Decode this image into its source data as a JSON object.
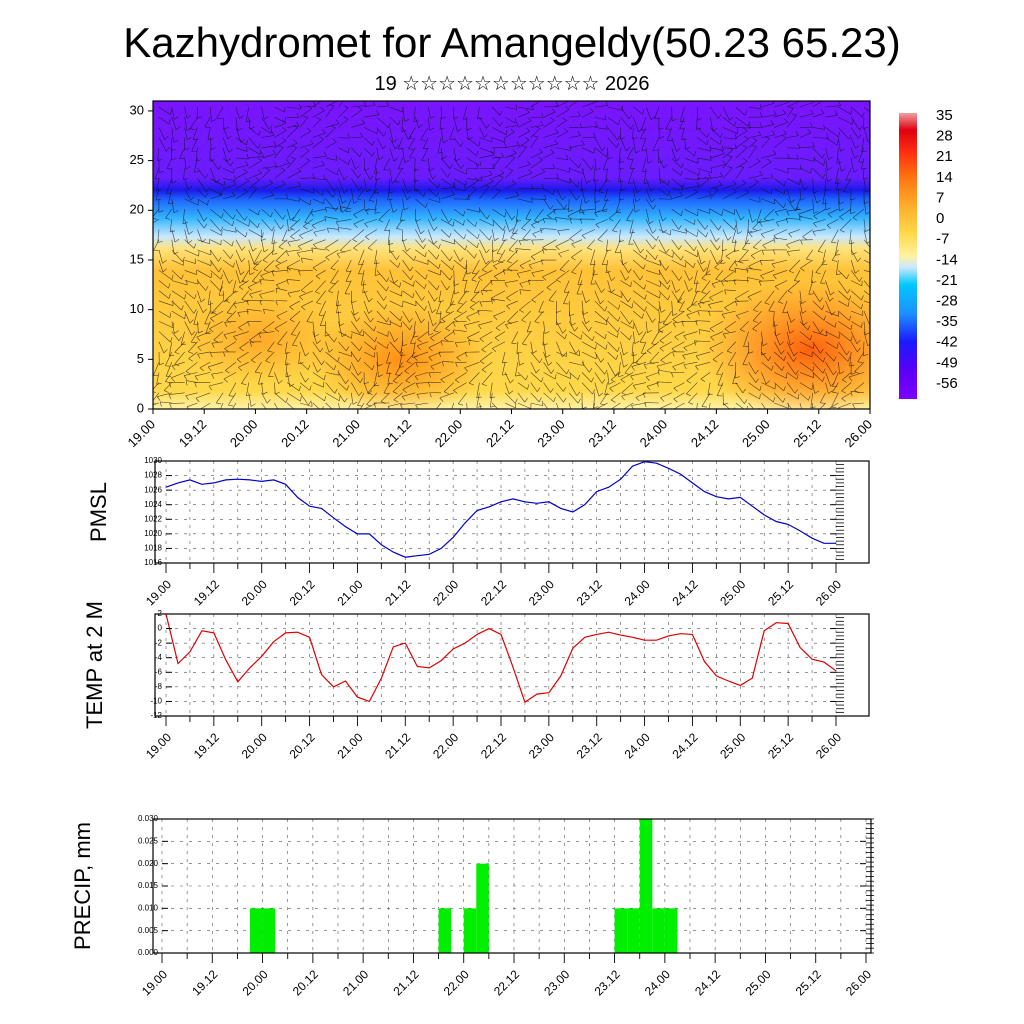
{
  "title": "Kazhydromet for Amangeldy(50.23 65.23)",
  "subtitle": "19 ☆☆☆☆☆☆☆☆☆☆☆ 2026",
  "colors": {
    "pmsl_line": "#0000cc",
    "temp_line": "#dd0000",
    "precip_bar": "#00ee00",
    "colorbar": [
      "#7f00ff",
      "#5000f0",
      "#1a1aff",
      "#1e90ff",
      "#00c8ff",
      "#c8e8ff",
      "#fff2a0",
      "#ffd84a",
      "#ffaa28",
      "#ff7010",
      "#ff3010",
      "#e00010",
      "#f0a0a0"
    ]
  },
  "chart_data": [
    {
      "type": "heatmap",
      "description_of_panel": "",
      "y_ticks": [
        "0",
        "5",
        "10",
        "15",
        "20",
        "25",
        "30"
      ],
      "ylim": [
        0,
        31
      ],
      "x_ticks": [
        "19.00",
        "19.12",
        "20.00",
        "20.12",
        "21.00",
        "21.12",
        "22.00",
        "22.12",
        "23.00",
        "23.12",
        "24.00",
        "24.12",
        "25.00",
        "25.12",
        "26.00"
      ],
      "colorbar_labels": [
        "35",
        "28",
        "21",
        "14",
        "7",
        "0",
        "-7",
        "-14",
        "-21",
        "-28",
        "-35",
        "-42",
        "-49",
        "-56"
      ],
      "colorbar_range": [
        -56,
        35
      ],
      "overlay": "wind barbs"
    },
    {
      "type": "line",
      "ylabel": "PMSL",
      "ylim": [
        1016,
        1030
      ],
      "y_ticks": [
        "1016",
        "1018",
        "1020",
        "1022",
        "1024",
        "1026",
        "1028",
        "1030"
      ],
      "x_ticks": [
        "19.00",
        "19.12",
        "20.00",
        "20.12",
        "21.00",
        "21.12",
        "22.00",
        "22.12",
        "23.00",
        "23.12",
        "24.00",
        "24.12",
        "25.00",
        "25.12",
        "26.00"
      ],
      "x": [
        0,
        3,
        6,
        9,
        12,
        15,
        18,
        21,
        24,
        27,
        30,
        33,
        36,
        39,
        42,
        45,
        48,
        51,
        54,
        57,
        60,
        63,
        66,
        69,
        72,
        75,
        78,
        81,
        84,
        87,
        90,
        93,
        96,
        99,
        102,
        105,
        108,
        111,
        114,
        117,
        120,
        123,
        126,
        129,
        132,
        135,
        138,
        141,
        144,
        147,
        150,
        153,
        156,
        159,
        162,
        165,
        168
      ],
      "values": [
        1026.4,
        1027,
        1027.4,
        1026.8,
        1027,
        1027.4,
        1027.5,
        1027.4,
        1027.2,
        1027.4,
        1026.8,
        1025,
        1023.8,
        1023.5,
        1022.2,
        1021,
        1020,
        1020,
        1018.5,
        1017.5,
        1016.8,
        1017,
        1017.2,
        1018,
        1019.5,
        1021.5,
        1023.2,
        1023.7,
        1024.4,
        1024.8,
        1024.4,
        1024.2,
        1024.4,
        1023.5,
        1023,
        1024,
        1025.8,
        1026.4,
        1027.5,
        1029.3,
        1029.9,
        1029.7,
        1029,
        1028.2,
        1027,
        1025.8,
        1025.1,
        1024.8,
        1025,
        1023.8,
        1022.6,
        1021.7,
        1021.3,
        1020.4,
        1019.4,
        1018.7,
        1018.7
      ]
    },
    {
      "type": "line",
      "ylabel": "TEMP at 2 M",
      "ylim": [
        -12,
        2
      ],
      "y_ticks": [
        "2",
        "0",
        "-2",
        "-4",
        "-6",
        "-8",
        "-10",
        "-12"
      ],
      "x_ticks": [
        "19.00",
        "19.12",
        "20.00",
        "20.12",
        "21.00",
        "21.12",
        "22.00",
        "22.12",
        "23.00",
        "23.12",
        "24.00",
        "24.12",
        "25.00",
        "25.12",
        "26.00"
      ],
      "x": [
        0,
        3,
        6,
        9,
        12,
        15,
        18,
        21,
        24,
        27,
        30,
        33,
        36,
        39,
        42,
        45,
        48,
        51,
        54,
        57,
        60,
        63,
        66,
        69,
        72,
        75,
        78,
        81,
        84,
        87,
        90,
        93,
        96,
        99,
        102,
        105,
        108,
        111,
        114,
        117,
        120,
        123,
        126,
        129,
        132,
        135,
        138,
        141,
        144,
        147,
        150,
        153,
        156,
        159,
        162,
        165,
        168
      ],
      "values": [
        2,
        -4.8,
        -3.2,
        -0.3,
        -0.6,
        -4.3,
        -7.3,
        -5.4,
        -3.8,
        -1.8,
        -0.6,
        -0.5,
        -1.2,
        -6.3,
        -8.0,
        -7.2,
        -9.4,
        -10,
        -6.8,
        -2.5,
        -2.0,
        -5.2,
        -5.4,
        -4.4,
        -2.8,
        -2.0,
        -0.8,
        0,
        -0.8,
        -5.3,
        -10.1,
        -9.0,
        -8.8,
        -6.5,
        -2.7,
        -1.2,
        -0.8,
        -0.5,
        -0.9,
        -1.2,
        -1.6,
        -1.6,
        -1.0,
        -0.7,
        -0.8,
        -4.5,
        -6.5,
        -7.2,
        -7.8,
        -6.8,
        -0.3,
        0.8,
        0.7,
        -2.6,
        -4.2,
        -4.6,
        -5.8
      ]
    },
    {
      "type": "bar",
      "ylabel": "PRECIP, mm",
      "ylim": [
        0,
        0.03
      ],
      "y_ticks": [
        "0.000",
        "0.005",
        "0.010",
        "0.015",
        "0.020",
        "0.025",
        "0.030"
      ],
      "x_ticks": [
        "19.00",
        "19.12",
        "20.00",
        "20.12",
        "21.00",
        "21.12",
        "22.00",
        "22.12",
        "23.00",
        "23.12",
        "24.00",
        "24.12",
        "25.00",
        "25.12",
        "26.00"
      ],
      "bars": [
        {
          "x": 24,
          "value": 0.01
        },
        {
          "x": 27,
          "value": 0.01
        },
        {
          "x": 69,
          "value": 0.01
        },
        {
          "x": 75,
          "value": 0.01
        },
        {
          "x": 78,
          "value": 0.02
        },
        {
          "x": 111,
          "value": 0.01
        },
        {
          "x": 114,
          "value": 0.01
        },
        {
          "x": 117,
          "value": 0.03
        },
        {
          "x": 120,
          "value": 0.01
        },
        {
          "x": 123,
          "value": 0.01
        }
      ]
    }
  ]
}
